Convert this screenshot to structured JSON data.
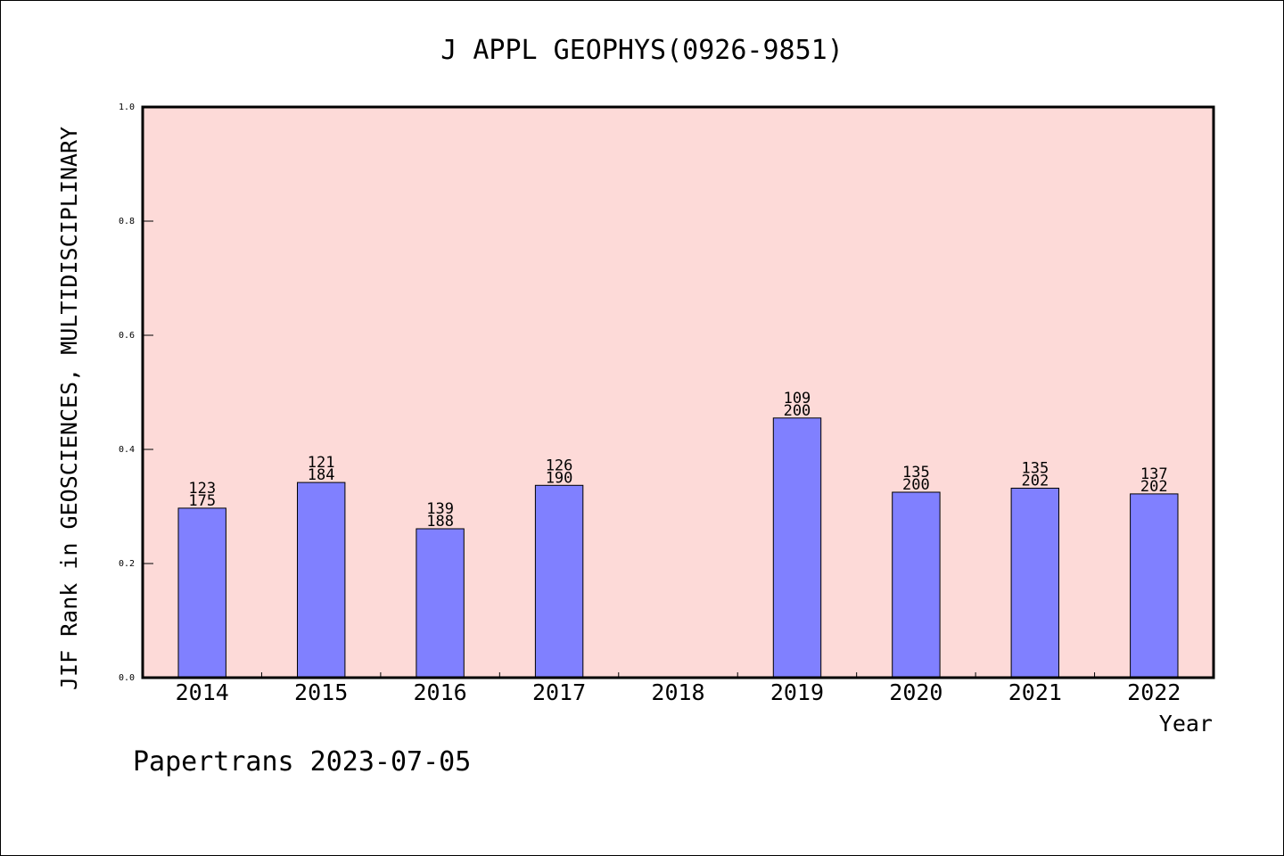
{
  "chart_data": {
    "type": "bar",
    "title": "J APPL GEOPHYS(0926-9851)",
    "xlabel": "Year",
    "ylabel": "JIF Rank in GEOSCIENCES, MULTIDISCIPLINARY",
    "categories": [
      "2014",
      "2015",
      "2016",
      "2017",
      "2018",
      "2019",
      "2020",
      "2021",
      "2022"
    ],
    "series": [
      {
        "values": [
          0.297,
          0.342,
          0.261,
          0.337,
          null,
          0.455,
          0.325,
          0.332,
          0.322
        ],
        "rank": [
          "123",
          "121",
          "139",
          "126",
          null,
          "109",
          "135",
          "135",
          "137"
        ],
        "total": [
          "175",
          "184",
          "188",
          "190",
          null,
          "200",
          "200",
          "202",
          "202"
        ]
      }
    ],
    "ylim": [
      0,
      1.0
    ],
    "yticks": [
      "0.0",
      "0.2",
      "0.4",
      "0.6",
      "0.8",
      "1.0"
    ],
    "grid": false,
    "colors": {
      "bar": "#8080ff",
      "plot_background": "#fddad8",
      "axis": "#000000"
    }
  },
  "footer": "Papertrans 2023-07-05"
}
